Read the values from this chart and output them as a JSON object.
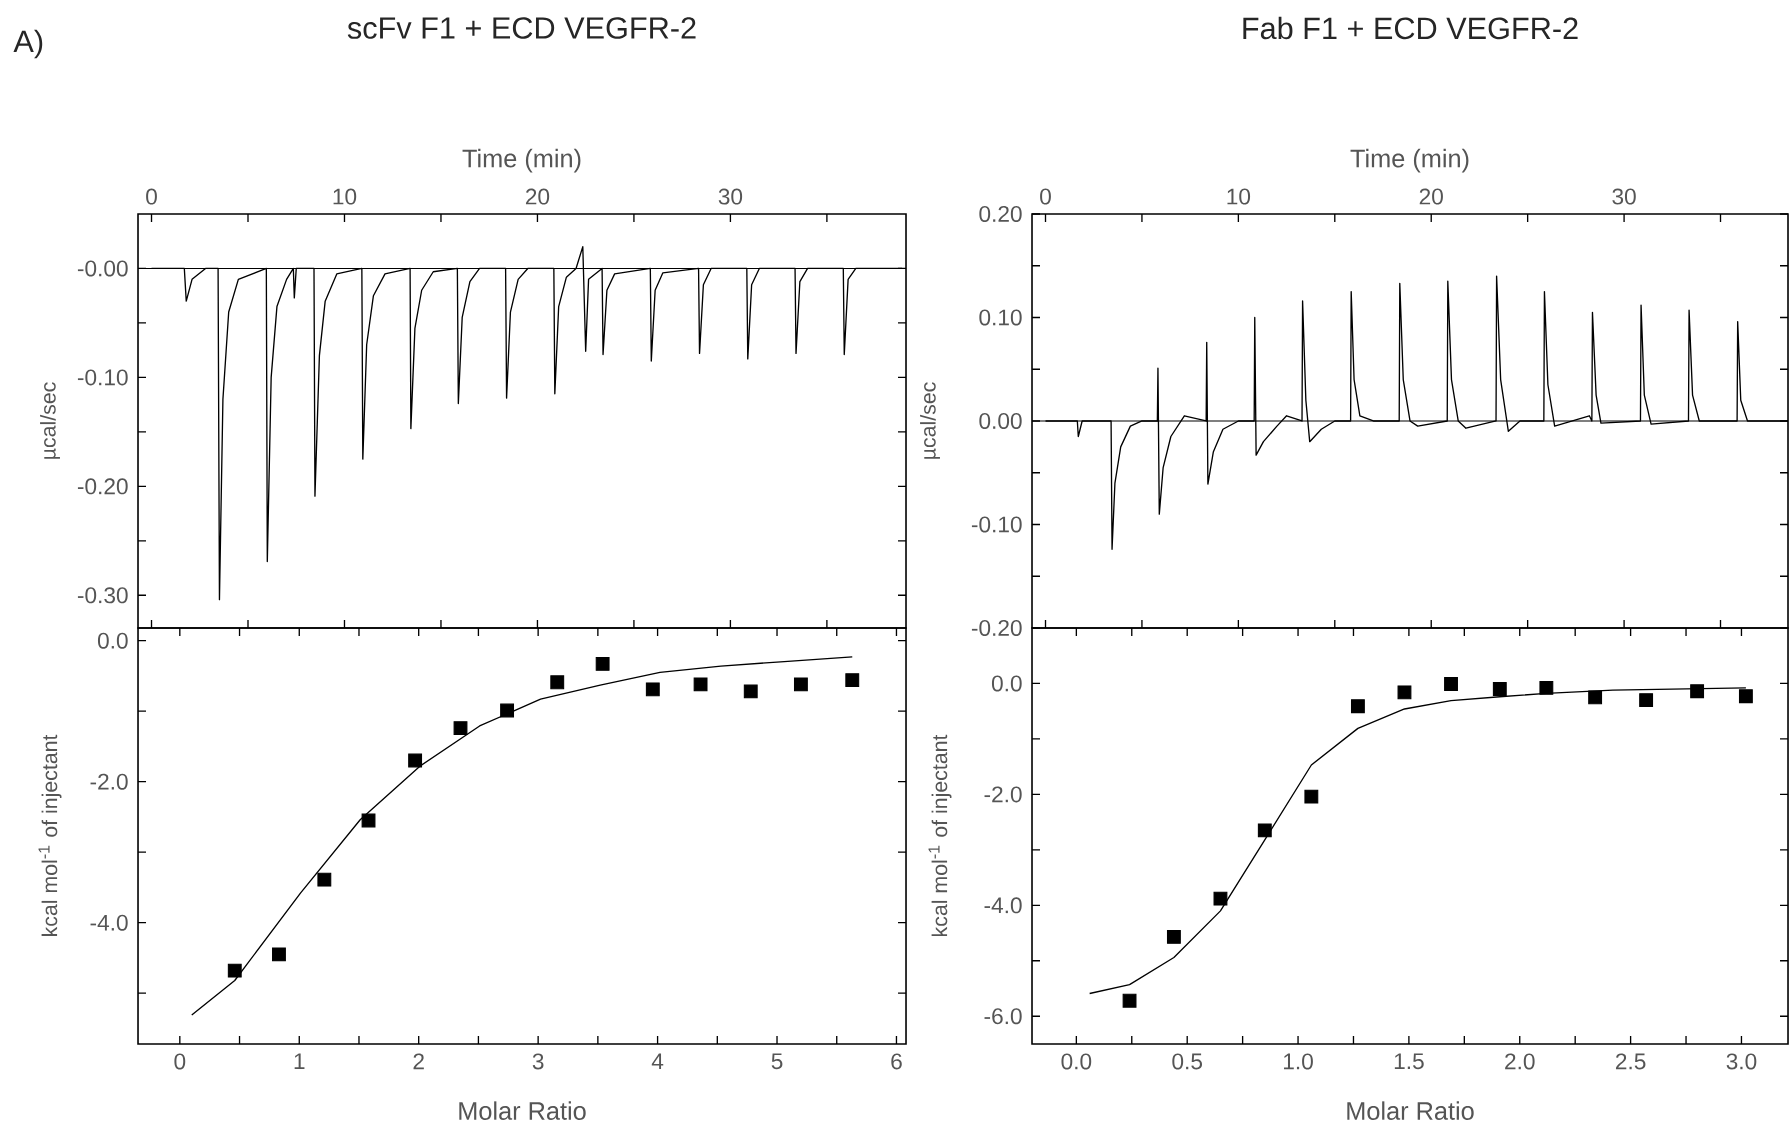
{
  "chart_data": [
    {
      "type": "line",
      "title": "scFv F1 + ECD VEGFR-2",
      "annotations": [
        "A)"
      ],
      "xlabel": "Time (min)",
      "ylabel": "µcal/sec",
      "xlim": [
        -0.7,
        39.1
      ],
      "ylim": [
        -0.33,
        0.05
      ],
      "xticks": [
        0,
        {
          "value": 5,
          "label": null
        },
        10,
        {
          "value": 15,
          "label": null
        },
        20,
        {
          "value": 25,
          "label": null
        },
        30,
        {
          "value": 35,
          "label": null
        }
      ],
      "yticks": [
        {
          "value": 0,
          "label": "-0.00"
        },
        {
          "value": -0.05,
          "label": null
        },
        {
          "value": -0.1,
          "label": "-0.10"
        },
        {
          "value": -0.15,
          "label": null
        },
        {
          "value": -0.2,
          "label": "-0.20"
        },
        {
          "value": -0.25,
          "label": null
        },
        {
          "value": -0.3,
          "label": "-0.30"
        }
      ],
      "ref_lines": [
        {
          "axis": "y",
          "value": 0,
          "color": "#000000"
        }
      ],
      "series": [
        {
          "color": "#000000",
          "x": [
            0,
            1.7,
            1.8,
            2.1,
            2.8,
            3.45,
            3.52,
            3.7,
            4.0,
            4.5,
            5.95,
            6.0,
            6.2,
            6.5,
            7.0,
            7.35,
            7.4,
            7.5,
            8.42,
            8.47,
            8.7,
            9.0,
            9.6,
            10.9,
            10.95,
            11.15,
            11.5,
            12.1,
            13.4,
            13.44,
            13.65,
            14.0,
            14.6,
            15.85,
            15.9,
            16.1,
            16.5,
            17.0,
            18.35,
            18.4,
            18.6,
            19.0,
            19.5,
            20.85,
            20.9,
            21.1,
            21.5,
            22.0,
            22.35,
            22.5,
            22.65,
            23.35,
            23.4,
            23.6,
            24.0,
            25.85,
            25.9,
            26.1,
            26.5,
            28.35,
            28.4,
            28.6,
            29.0,
            30.85,
            30.9,
            31.1,
            31.5,
            33.35,
            33.4,
            33.6,
            34.0,
            35.85,
            35.9,
            36.1,
            36.5,
            38.9
          ],
          "values": [
            0,
            0,
            -0.03,
            -0.01,
            0,
            0,
            -0.304,
            -0.12,
            -0.04,
            -0.01,
            0,
            -0.269,
            -0.1,
            -0.035,
            -0.01,
            0,
            -0.027,
            0,
            0,
            -0.209,
            -0.08,
            -0.03,
            -0.005,
            0,
            -0.175,
            -0.07,
            -0.025,
            -0.005,
            0,
            -0.147,
            -0.055,
            -0.02,
            -0.003,
            0,
            -0.124,
            -0.045,
            -0.012,
            0,
            0,
            -0.119,
            -0.04,
            -0.01,
            0,
            0,
            -0.115,
            -0.035,
            -0.008,
            0,
            0.02,
            -0.076,
            -0.01,
            0,
            -0.079,
            -0.02,
            -0.005,
            0,
            -0.085,
            -0.02,
            -0.004,
            0,
            -0.078,
            -0.015,
            0,
            0,
            -0.083,
            -0.015,
            0,
            0,
            -0.078,
            -0.012,
            0,
            0,
            -0.079,
            -0.01,
            0,
            0
          ]
        }
      ]
    },
    {
      "type": "scatter",
      "xlabel": "Molar Ratio",
      "ylabel": "kcal mol$^{-1}$ of injectant",
      "xlim": [
        -0.35,
        6.08
      ],
      "ylim": [
        -5.72,
        0.18
      ],
      "xticks": [
        0,
        {
          "value": 0.5,
          "label": null
        },
        1,
        {
          "value": 1.5,
          "label": null
        },
        2,
        {
          "value": 2.5,
          "label": null
        },
        3,
        {
          "value": 3.5,
          "label": null
        },
        4,
        {
          "value": 4.5,
          "label": null
        },
        5,
        {
          "value": 5.5,
          "label": null
        },
        6
      ],
      "yticks": [
        {
          "value": 0,
          "label": "0.0"
        },
        {
          "value": -1,
          "label": null
        },
        {
          "value": -2,
          "label": "-2.0"
        },
        {
          "value": -3,
          "label": null
        },
        {
          "value": -4,
          "label": "-4.0"
        },
        {
          "value": -5,
          "label": null
        }
      ],
      "series": [
        {
          "color": "#000000",
          "marker": "square",
          "x": [
            0.46,
            0.83,
            1.21,
            1.58,
            1.97,
            2.35,
            2.74,
            3.16,
            3.54,
            3.96,
            4.36,
            4.78,
            5.2,
            5.63
          ],
          "values": [
            -4.68,
            -4.45,
            -3.39,
            -2.55,
            -1.7,
            -1.24,
            -0.99,
            -0.59,
            -0.33,
            -0.69,
            -0.62,
            -0.72,
            -0.62,
            -0.56
          ]
        },
        {
          "type": "line",
          "marker": "none",
          "color": "#000000",
          "x": [
            0.1,
            0.46,
            1.01,
            1.51,
            2.01,
            2.51,
            3.02,
            3.52,
            4.02,
            4.53,
            5.03,
            5.63
          ],
          "values": [
            -5.31,
            -4.82,
            -3.58,
            -2.54,
            -1.78,
            -1.21,
            -0.83,
            -0.63,
            -0.45,
            -0.36,
            -0.3,
            -0.23
          ]
        }
      ]
    },
    {
      "type": "line",
      "title": "Fab F1 + ECD VEGFR-2",
      "xlabel": "Time (min)",
      "ylabel": "µcal/sec",
      "xlim": [
        -0.7,
        38.5
      ],
      "ylim": [
        -0.2,
        0.2
      ],
      "xticks": [
        0,
        {
          "value": 5,
          "label": null
        },
        10,
        {
          "value": 15,
          "label": null
        },
        20,
        {
          "value": 25,
          "label": null
        },
        30,
        {
          "value": 35,
          "label": null
        }
      ],
      "yticks": [
        {
          "value": 0.2,
          "label": "0.20"
        },
        {
          "value": 0.15,
          "label": null
        },
        {
          "value": 0.1,
          "label": "0.10"
        },
        {
          "value": 0.05,
          "label": null
        },
        {
          "value": 0,
          "label": "0.00"
        },
        {
          "value": -0.05,
          "label": null
        },
        {
          "value": -0.1,
          "label": "-0.10"
        },
        {
          "value": -0.15,
          "label": null
        },
        {
          "value": -0.2,
          "label": "-0.20"
        }
      ],
      "ref_lines": [
        {
          "axis": "y",
          "value": 0,
          "color": "#000000"
        }
      ],
      "series": [
        {
          "color": "#000000",
          "x": [
            0,
            1.65,
            1.7,
            1.9,
            3.4,
            3.45,
            3.6,
            3.9,
            4.4,
            5.0,
            5.8,
            5.83,
            5.9,
            6.1,
            6.5,
            7.2,
            8.33,
            8.36,
            8.42,
            8.7,
            9.2,
            10.0,
            10.82,
            10.85,
            10.92,
            11.3,
            12.0,
            12.5,
            13.3,
            13.33,
            13.5,
            13.7,
            14.3,
            15.0,
            15.82,
            15.85,
            16.0,
            16.3,
            17.0,
            18.34,
            18.37,
            18.55,
            18.9,
            19.3,
            20.83,
            20.86,
            21.05,
            21.4,
            21.8,
            23.36,
            23.39,
            23.6,
            24.0,
            24.6,
            25.84,
            25.87,
            26.05,
            26.4,
            28.2,
            28.33,
            28.36,
            28.55,
            28.8,
            30.85,
            30.88,
            31.05,
            31.4,
            33.34,
            33.37,
            33.55,
            33.9,
            35.86,
            35.89,
            36.05,
            36.4,
            38.5
          ],
          "values": [
            0,
            0,
            -0.015,
            0,
            0,
            -0.124,
            -0.06,
            -0.025,
            -0.005,
            0,
            0,
            0.051,
            -0.09,
            -0.045,
            -0.015,
            0.005,
            0,
            0.076,
            -0.061,
            -0.03,
            -0.008,
            0,
            0,
            0.1,
            -0.033,
            -0.02,
            -0.005,
            0.005,
            0,
            0.116,
            0.02,
            -0.02,
            -0.008,
            0,
            0,
            0.125,
            0.04,
            0.005,
            0,
            0,
            0.133,
            0.04,
            0,
            -0.005,
            0,
            0.135,
            0.04,
            0,
            -0.007,
            0,
            0.14,
            0.04,
            -0.01,
            0,
            0,
            0.125,
            0.035,
            -0.005,
            0.005,
            0,
            0.105,
            0.025,
            -0.002,
            0,
            0.112,
            0.025,
            -0.003,
            0,
            0.107,
            0.025,
            0,
            0,
            0.096,
            0.02,
            0,
            0
          ]
        }
      ]
    },
    {
      "type": "scatter",
      "xlabel": "Molar Ratio",
      "ylabel": "kcal mol$^{-1}$ of injectant",
      "xlim": [
        -0.2,
        3.21
      ],
      "ylim": [
        -6.5,
        1.0
      ],
      "xticks": [
        {
          "value": 0,
          "label": "0.0"
        },
        {
          "value": 0.25,
          "label": null
        },
        0.5,
        {
          "value": 0.75,
          "label": null
        },
        {
          "value": 1,
          "label": "1.0"
        },
        {
          "value": 1.25,
          "label": null
        },
        1.5,
        {
          "value": 1.75,
          "label": null
        },
        {
          "value": 2,
          "label": "2.0"
        },
        {
          "value": 2.25,
          "label": null
        },
        2.5,
        {
          "value": 2.75,
          "label": null
        },
        {
          "value": 3,
          "label": "3.0"
        }
      ],
      "yticks": [
        {
          "value": 0,
          "label": "0.0"
        },
        {
          "value": -1,
          "label": null
        },
        {
          "value": -2,
          "label": "-2.0"
        },
        {
          "value": -3,
          "label": null
        },
        {
          "value": -4,
          "label": "-4.0"
        },
        {
          "value": -5,
          "label": null
        },
        {
          "value": -6,
          "label": "-6.0"
        }
      ],
      "series": [
        {
          "color": "#000000",
          "marker": "square",
          "x": [
            0.24,
            0.44,
            0.65,
            0.85,
            1.06,
            1.27,
            1.48,
            1.69,
            1.91,
            2.12,
            2.34,
            2.57,
            2.8,
            3.02
          ],
          "values": [
            -5.72,
            -4.57,
            -3.88,
            -2.65,
            -2.04,
            -0.41,
            -0.16,
            -0.01,
            -0.1,
            -0.08,
            -0.25,
            -0.3,
            -0.14,
            -0.23
          ]
        },
        {
          "type": "line",
          "marker": "none",
          "color": "#000000",
          "x": [
            0.06,
            0.24,
            0.44,
            0.65,
            0.85,
            1.06,
            1.27,
            1.48,
            1.69,
            1.91,
            2.12,
            2.42,
            3.02
          ],
          "values": [
            -5.59,
            -5.43,
            -4.94,
            -4.1,
            -2.82,
            -1.47,
            -0.81,
            -0.46,
            -0.31,
            -0.24,
            -0.18,
            -0.12,
            -0.08
          ]
        }
      ]
    }
  ]
}
